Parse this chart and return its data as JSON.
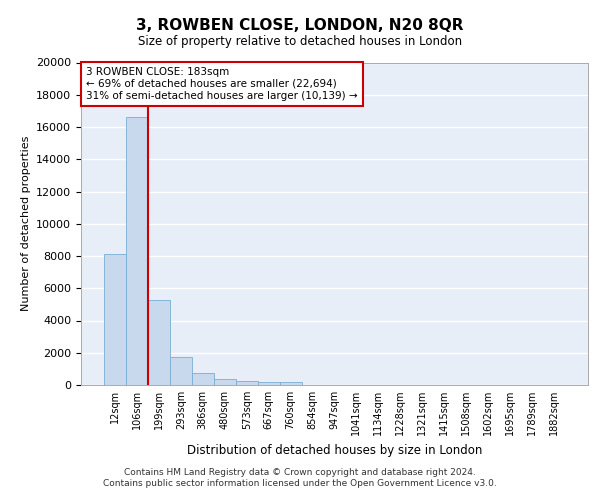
{
  "title": "3, ROWBEN CLOSE, LONDON, N20 8QR",
  "subtitle": "Size of property relative to detached houses in London",
  "xlabel": "Distribution of detached houses by size in London",
  "ylabel": "Number of detached properties",
  "categories": [
    "12sqm",
    "106sqm",
    "199sqm",
    "293sqm",
    "386sqm",
    "480sqm",
    "573sqm",
    "667sqm",
    "760sqm",
    "854sqm",
    "947sqm",
    "1041sqm",
    "1134sqm",
    "1228sqm",
    "1321sqm",
    "1415sqm",
    "1508sqm",
    "1602sqm",
    "1695sqm",
    "1789sqm",
    "1882sqm"
  ],
  "values": [
    8100,
    16600,
    5300,
    1750,
    750,
    350,
    270,
    200,
    160,
    0,
    0,
    0,
    0,
    0,
    0,
    0,
    0,
    0,
    0,
    0,
    0
  ],
  "bar_color": "#c8d9ee",
  "bar_edge_color": "#7aadd4",
  "vline_x": 2.0,
  "vline_color": "#cc0000",
  "annotation_text": "3 ROWBEN CLOSE: 183sqm\n← 69% of detached houses are smaller (22,694)\n31% of semi-detached houses are larger (10,139) →",
  "annotation_box_color": "#ffffff",
  "annotation_box_edge_color": "#cc0000",
  "background_color": "#e8eef8",
  "grid_color": "#ffffff",
  "ylim": [
    0,
    20000
  ],
  "yticks": [
    0,
    2000,
    4000,
    6000,
    8000,
    10000,
    12000,
    14000,
    16000,
    18000,
    20000
  ],
  "footer_line1": "Contains HM Land Registry data © Crown copyright and database right 2024.",
  "footer_line2": "Contains public sector information licensed under the Open Government Licence v3.0."
}
